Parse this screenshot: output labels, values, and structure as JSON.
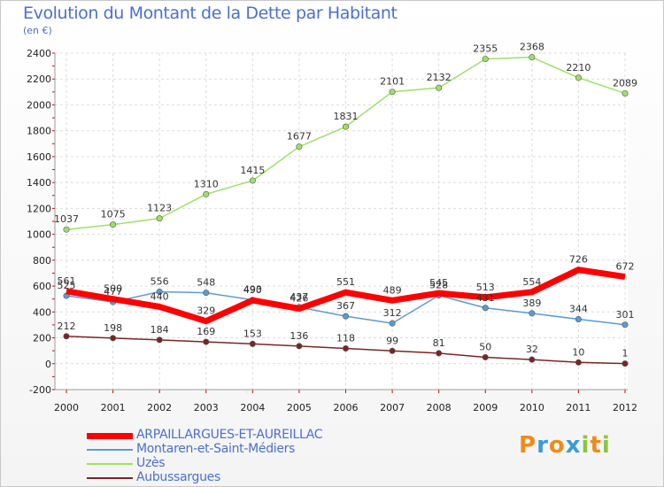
{
  "title": "Evolution du Montant de la Dette par Habitant",
  "subtitle": "(en €)",
  "logo": {
    "letters": [
      "P",
      "r",
      "o",
      "x",
      "i",
      "t",
      "i"
    ],
    "colors": [
      "#f08a1c",
      "#3a9bd9",
      "#f08a1c",
      "#3a9bd9",
      "#8cc43e",
      "#f08a1c",
      "#8cc43e"
    ]
  },
  "chart_data": {
    "type": "line",
    "x": [
      "2000",
      "2001",
      "2002",
      "2003",
      "2004",
      "2005",
      "2006",
      "2007",
      "2008",
      "2009",
      "2010",
      "2011",
      "2012"
    ],
    "ylim": [
      -200,
      2400
    ],
    "yticks": [
      "-200",
      "0",
      "200",
      "400",
      "600",
      "800",
      "1000",
      "1200",
      "1400",
      "1600",
      "1800",
      "2000",
      "2200",
      "2400"
    ],
    "ytick_values": [
      -200,
      0,
      200,
      400,
      600,
      800,
      1000,
      1200,
      1400,
      1600,
      1800,
      2000,
      2200,
      2400
    ],
    "grid": true,
    "legend": "bottom-left",
    "series": [
      {
        "name": "ARPAILLARGUES-ET-AUREILLAC",
        "color": "#ff0000",
        "values": [
          561,
          500,
          440,
          329,
          490,
          426,
          551,
          489,
          545,
          513,
          554,
          726,
          672
        ],
        "labels": [
          "561",
          "500",
          "440",
          "329",
          "490",
          "426",
          "551",
          "489",
          "545",
          "513",
          "554",
          "726",
          "672"
        ]
      },
      {
        "name": "Montaren-et-Saint-Médiers",
        "color": "#5b9bd5",
        "values": [
          525,
          477,
          556,
          548,
          493,
          437,
          367,
          312,
          528,
          431,
          389,
          344,
          301
        ],
        "labels": [
          "525",
          "477",
          "556",
          "548",
          "493",
          "437",
          "367",
          "312",
          "528",
          "431",
          "389",
          "344",
          "301"
        ]
      },
      {
        "name": "Uzès",
        "color": "#9ee06a",
        "values": [
          1037,
          1075,
          1123,
          1310,
          1415,
          1677,
          1831,
          2101,
          2132,
          2355,
          2368,
          2210,
          2089
        ],
        "labels": [
          "1037",
          "1075",
          "1123",
          "1310",
          "1415",
          "1677",
          "1831",
          "2101",
          "2132",
          "2355",
          "2368",
          "2210",
          "2089"
        ]
      },
      {
        "name": "Aubussargues",
        "color": "#7a2525",
        "values": [
          212,
          198,
          184,
          169,
          153,
          136,
          118,
          99,
          81,
          50,
          32,
          10,
          1
        ],
        "labels": [
          "212",
          "198",
          "184",
          "169",
          "153",
          "136",
          "118",
          "99",
          "81",
          "50",
          "32",
          "10",
          "1"
        ]
      }
    ]
  }
}
